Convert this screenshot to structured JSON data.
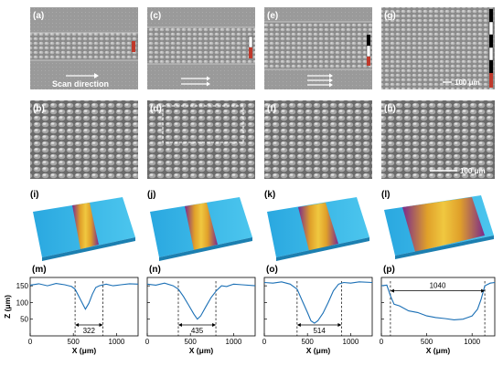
{
  "sem": {
    "panels": [
      {
        "label": "(a)",
        "text": "Scan direction",
        "arrows": 1,
        "channel": "narrow"
      },
      {
        "label": "(c)",
        "text": "",
        "arrows": 2,
        "channel": "medium"
      },
      {
        "label": "(e)",
        "text": "",
        "arrows": 3,
        "channel": "wide"
      },
      {
        "label": "(g)",
        "text": "",
        "arrows": 0,
        "channel": "full",
        "scale_text": "100 μm"
      },
      {
        "label": "(b)"
      },
      {
        "label": "(d)"
      },
      {
        "label": "(f)"
      },
      {
        "label": "(h)",
        "scale_text": "100 μm"
      }
    ]
  },
  "topo": {
    "panels": [
      {
        "label": "(i)",
        "groove": "narrow"
      },
      {
        "label": "(j)",
        "groove": "medium"
      },
      {
        "label": "(k)",
        "groove": "wide"
      },
      {
        "label": "(l)",
        "groove": "full"
      }
    ],
    "colors": {
      "base": "#29b6e8",
      "mid": "#e0a02a",
      "deep": "#7a2a8c"
    }
  },
  "chart_data": [
    {
      "type": "line",
      "panel": "(m)",
      "title": "",
      "xlabel": "X (μm)",
      "ylabel": "Z (μm)",
      "xlim": [
        0,
        1250
      ],
      "ylim": [
        0,
        175
      ],
      "xticks": [
        0,
        500,
        1000
      ],
      "yticks": [
        50,
        100,
        150
      ],
      "x": [
        0,
        100,
        200,
        300,
        400,
        480,
        520,
        560,
        600,
        640,
        680,
        720,
        760,
        800,
        880,
        960,
        1050,
        1150,
        1250
      ],
      "y": [
        152,
        156,
        150,
        157,
        153,
        148,
        140,
        120,
        100,
        80,
        98,
        125,
        145,
        150,
        155,
        150,
        153,
        156,
        155
      ],
      "annotation": {
        "text": "322",
        "x_start": 520,
        "x_end": 842
      },
      "color": "#1a6fb5"
    },
    {
      "type": "line",
      "panel": "(n)",
      "title": "",
      "xlabel": "X (μm)",
      "ylabel": "",
      "xlim": [
        0,
        1250
      ],
      "ylim": [
        0,
        175
      ],
      "xticks": [
        0,
        500,
        1000
      ],
      "yticks": [
        50,
        100,
        150
      ],
      "x": [
        0,
        100,
        200,
        300,
        360,
        420,
        480,
        540,
        580,
        620,
        680,
        740,
        800,
        860,
        920,
        1000,
        1100,
        1250
      ],
      "y": [
        155,
        152,
        158,
        150,
        140,
        118,
        92,
        65,
        50,
        60,
        88,
        115,
        135,
        150,
        148,
        155,
        153,
        150
      ],
      "annotation": {
        "text": "435",
        "x_start": 360,
        "x_end": 795
      },
      "color": "#1a6fb5"
    },
    {
      "type": "line",
      "panel": "(o)",
      "title": "",
      "xlabel": "X (μm)",
      "ylabel": "",
      "xlim": [
        0,
        1250
      ],
      "ylim": [
        0,
        175
      ],
      "xticks": [
        0,
        500,
        1000
      ],
      "yticks": [
        50,
        100,
        150
      ],
      "x": [
        0,
        100,
        200,
        300,
        380,
        440,
        500,
        540,
        580,
        620,
        680,
        740,
        800,
        860,
        920,
        1000,
        1100,
        1250
      ],
      "y": [
        160,
        158,
        162,
        155,
        140,
        105,
        70,
        45,
        38,
        45,
        68,
        100,
        135,
        155,
        160,
        158,
        162,
        160
      ],
      "annotation": {
        "text": "514",
        "x_start": 380,
        "x_end": 894
      },
      "color": "#1a6fb5"
    },
    {
      "type": "line",
      "panel": "(p)",
      "title": "",
      "xlabel": "X (μm)",
      "ylabel": "",
      "xlim": [
        0,
        1250
      ],
      "ylim": [
        0,
        175
      ],
      "xticks": [
        0,
        500,
        1000
      ],
      "yticks": [
        50,
        100,
        150
      ],
      "x": [
        0,
        60,
        100,
        140,
        200,
        300,
        400,
        500,
        600,
        700,
        800,
        900,
        1000,
        1060,
        1100,
        1140,
        1200,
        1250
      ],
      "y": [
        150,
        152,
        120,
        95,
        90,
        75,
        70,
        60,
        55,
        52,
        48,
        50,
        60,
        80,
        110,
        150,
        158,
        160
      ],
      "annotation": {
        "text": "1040",
        "x_start": 100,
        "x_end": 1140
      },
      "color": "#1a6fb5"
    }
  ]
}
